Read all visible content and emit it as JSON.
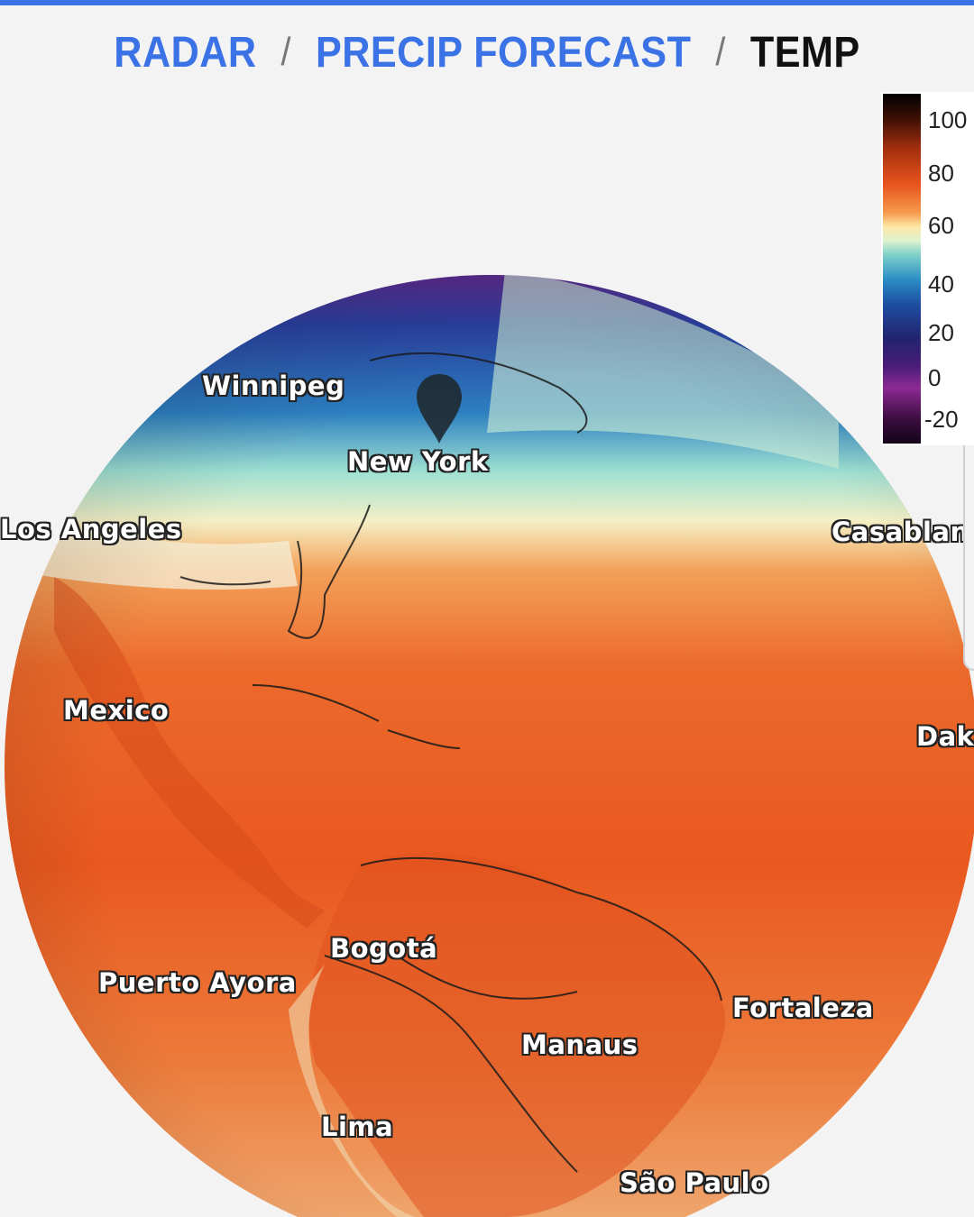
{
  "tabs": [
    {
      "label": "RADAR",
      "state": "link"
    },
    {
      "label": "PRECIP FORECAST",
      "state": "link"
    },
    {
      "label": "TEMP",
      "state": "active"
    }
  ],
  "separator": "/",
  "legend": {
    "ticks": [
      "100",
      "80",
      "60",
      "40",
      "20",
      "0",
      "-20"
    ]
  },
  "map": {
    "marker_icon": "location-pin-icon",
    "cities": [
      {
        "name": "Winnipeg"
      },
      {
        "name": "New York"
      },
      {
        "name": "Los Angeles"
      },
      {
        "name": "Casablanca"
      },
      {
        "name": "Mexico"
      },
      {
        "name": "Dakar"
      },
      {
        "name": "Bogotá"
      },
      {
        "name": "Puerto Ayora"
      },
      {
        "name": "Fortaleza"
      },
      {
        "name": "Manaus"
      },
      {
        "name": "Lima"
      },
      {
        "name": "São Paulo"
      }
    ]
  },
  "colors": {
    "accent": "#3b73e6",
    "active_tab": "#111111"
  }
}
